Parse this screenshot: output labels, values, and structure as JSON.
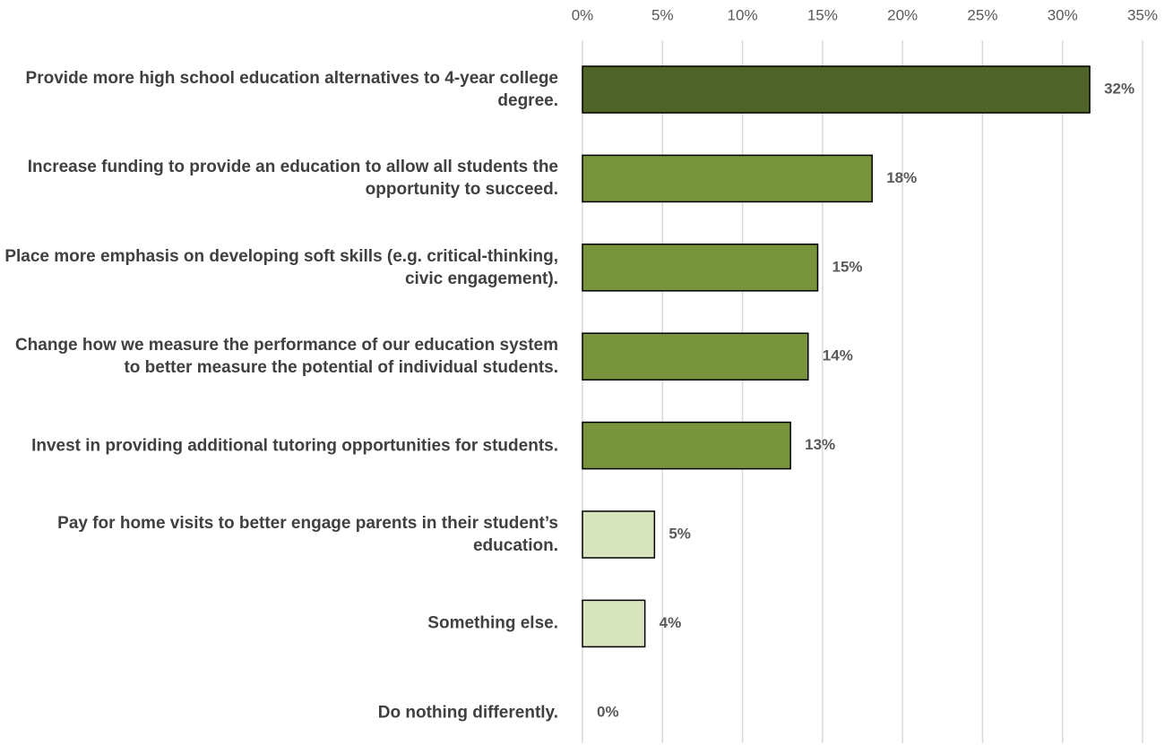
{
  "chart_data": {
    "type": "bar",
    "orientation": "horizontal",
    "categories": [
      "Provide more high school education alternatives to 4-year college degree.",
      "Increase funding to provide an education to allow all students the opportunity to succeed.",
      "Place more emphasis on developing soft skills (e.g. critical-thinking, civic engagement).",
      "Change how we measure the performance of our education system to better measure the potential of individual students.",
      "Invest in providing additional tutoring opportunities for students.",
      "Pay for home visits to better engage parents in their student’s education.",
      "Something else.",
      "Do nothing differently."
    ],
    "values": [
      31.7,
      18.1,
      14.7,
      14.1,
      13,
      4.5,
      3.9,
      0
    ],
    "value_labels": [
      "32%",
      "18%",
      "15%",
      "14%",
      "13%",
      "5%",
      "4%",
      "0%"
    ],
    "colors": [
      "#4f6228",
      "#77933c",
      "#77933c",
      "#77933c",
      "#77933c",
      "#d7e4bd",
      "#d7e4bd",
      "#d7e4bd"
    ],
    "xlim": [
      0,
      35
    ],
    "xticks": [
      {
        "value": 0,
        "label": "0%"
      },
      {
        "value": 5,
        "label": "5%"
      },
      {
        "value": 10,
        "label": "10%"
      },
      {
        "value": 15,
        "label": "15%"
      },
      {
        "value": 20,
        "label": "20%"
      },
      {
        "value": 25,
        "label": "25%"
      },
      {
        "value": 30,
        "label": "30%"
      },
      {
        "value": 35,
        "label": "35%"
      }
    ],
    "grid": true
  }
}
